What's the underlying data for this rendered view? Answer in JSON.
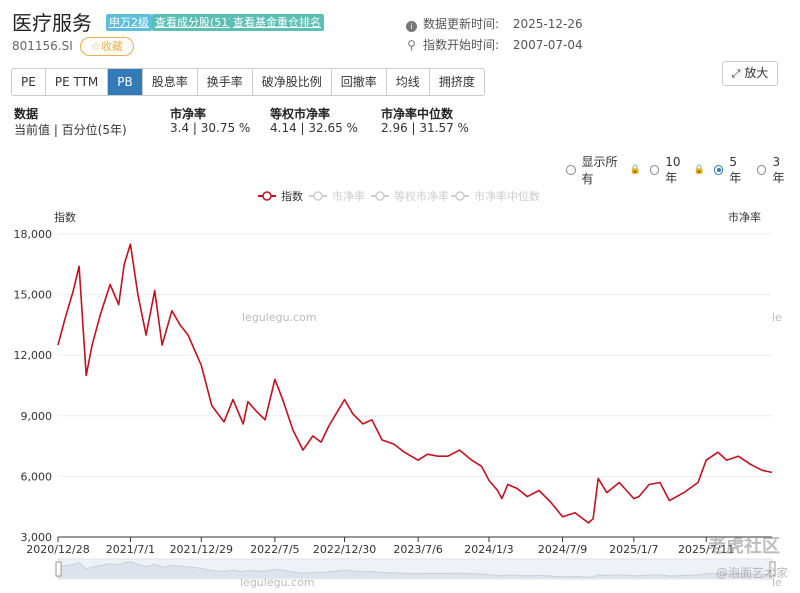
{
  "header": {
    "title": "医疗服务",
    "badges": [
      "申万2级",
      "查看成分股(51)",
      "查看基金重仓排名"
    ],
    "code": "801156.SI",
    "favorite_label": "☆收藏",
    "update_label": "数据更新时间:",
    "update_value": "2025-12-26",
    "start_label": "指数开始时间:",
    "start_value": "2007-07-04"
  },
  "tabs": [
    "PE",
    "PE TTM",
    "PB",
    "股息率",
    "换手率",
    "破净股比例",
    "回撤率",
    "均线",
    "拥挤度"
  ],
  "active_tab": "PB",
  "zoom_label": "放大",
  "stats": {
    "data_h": "数据",
    "data_v": "当前值 | 百分位(5年)",
    "pb_h": "市净率",
    "pb_v": "3.4 | 30.75 %",
    "eq_h": "等权市净率",
    "eq_v": "4.14 | 32.65 %",
    "med_h": "市净率中位数",
    "med_v": "2.96 | 31.57 %"
  },
  "ranges": [
    "显示所有",
    "10年",
    "5年",
    "3年"
  ],
  "selected_range": "5年",
  "watermarks": {
    "site": "legulegu.com",
    "site_nav": "legulegu.com",
    "cut": "le",
    "cut_nav": "le",
    "brand1": "老虎社区",
    "brand2": "@泡面艺术家"
  },
  "colors": {
    "index_line": "#c40f1f",
    "active_tab": "#337ab7"
  },
  "chart_data": {
    "type": "line",
    "legend": [
      "指数",
      "市净率",
      "等权市净率",
      "市净率中位数"
    ],
    "legend_active": [
      true,
      false,
      false,
      false
    ],
    "ylabel_left": "指数",
    "ylabel_right": "市净率",
    "ylim": [
      3000,
      18000
    ],
    "yticks": [
      "3,000",
      "6,000",
      "9,000",
      "12,000",
      "15,000",
      "18,000"
    ],
    "xticks": [
      "2020/12/28",
      "2021/7/1",
      "2021/12/29",
      "2022/7/5",
      "2022/12/30",
      "2023/7/6",
      "2024/1/3",
      "2024/7/9",
      "2025/1/7",
      "2025/7/11"
    ],
    "series": [
      {
        "name": "指数",
        "x": [
          "2020/12/28",
          "2021/1/15",
          "2021/2/5",
          "2021/2/20",
          "2021/3/10",
          "2021/3/25",
          "2021/4/15",
          "2021/5/10",
          "2021/6/1",
          "2021/6/15",
          "2021/7/1",
          "2021/7/20",
          "2021/8/10",
          "2021/9/1",
          "2021/9/20",
          "2021/10/15",
          "2021/11/5",
          "2021/11/25",
          "2021/12/29",
          "2022/1/25",
          "2022/2/25",
          "2022/3/20",
          "2022/4/15",
          "2022/4/27",
          "2022/5/20",
          "2022/6/10",
          "2022/7/5",
          "2022/7/25",
          "2022/8/20",
          "2022/9/15",
          "2022/10/10",
          "2022/10/31",
          "2022/11/20",
          "2022/12/30",
          "2023/1/20",
          "2023/2/15",
          "2023/3/10",
          "2023/4/5",
          "2023/5/5",
          "2023/6/1",
          "2023/7/6",
          "2023/7/30",
          "2023/8/25",
          "2023/9/20",
          "2023/10/20",
          "2023/11/20",
          "2023/12/15",
          "2024/1/3",
          "2024/1/25",
          "2024/2/5",
          "2024/2/20",
          "2024/3/15",
          "2024/4/10",
          "2024/5/10",
          "2024/6/10",
          "2024/7/9",
          "2024/8/10",
          "2024/9/13",
          "2024/9/25",
          "2024/10/8",
          "2024/10/30",
          "2024/12/1",
          "2025/1/7",
          "2025/1/20",
          "2025/2/15",
          "2025/3/15",
          "2025/4/8",
          "2025/5/15",
          "2025/6/20",
          "2025/7/11",
          "2025/8/10",
          "2025/9/1",
          "2025/10/1",
          "2025/11/1",
          "2025/12/1",
          "2025/12/26"
        ],
        "values": [
          12500,
          13800,
          15200,
          16400,
          11000,
          12500,
          14000,
          15500,
          14500,
          16500,
          17500,
          15000,
          13000,
          15200,
          12500,
          14200,
          13500,
          13000,
          11500,
          9500,
          8700,
          9800,
          8600,
          9700,
          9200,
          8800,
          10800,
          9800,
          8300,
          7300,
          8000,
          7700,
          8500,
          9800,
          9100,
          8600,
          8800,
          7800,
          7600,
          7200,
          6800,
          7100,
          7000,
          7000,
          7300,
          6800,
          6500,
          5800,
          5300,
          4900,
          5600,
          5400,
          5000,
          5300,
          4700,
          4000,
          4200,
          3700,
          3900,
          5900,
          5200,
          5700,
          4900,
          5000,
          5600,
          5700,
          4800,
          5200,
          5700,
          6800,
          7200,
          6800,
          7000,
          6600,
          6300,
          6200
        ]
      }
    ]
  }
}
